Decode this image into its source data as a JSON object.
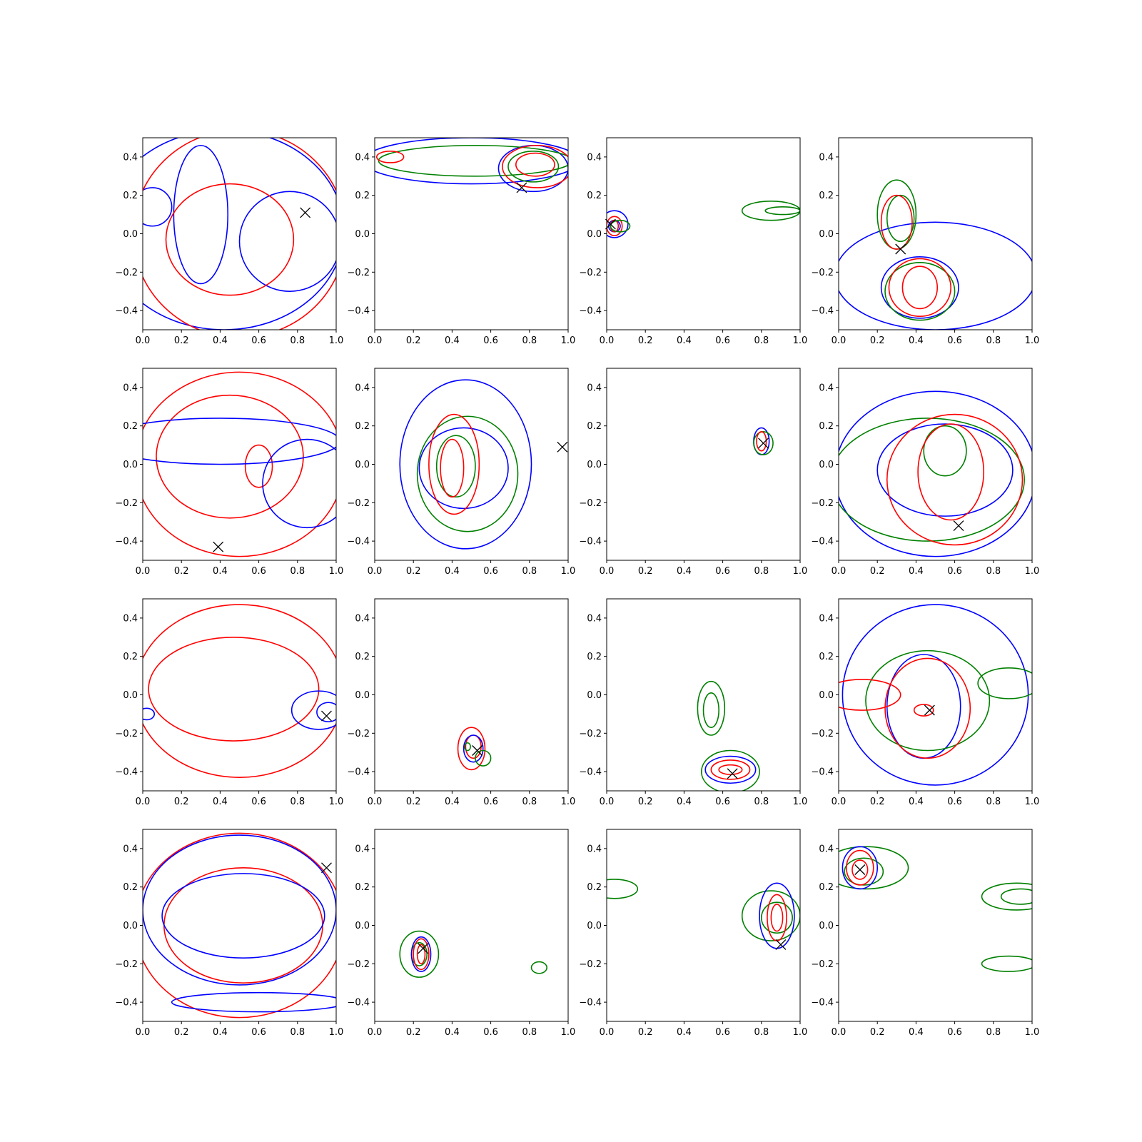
{
  "chart_data": {
    "type": "contour",
    "layout": {
      "rows": 4,
      "cols": 4
    },
    "xlim": [
      0,
      1
    ],
    "ylim": [
      -0.5,
      0.5
    ],
    "x_ticks": [
      "0.0",
      "0.2",
      "0.4",
      "0.6",
      "0.8",
      "1.0"
    ],
    "y_ticks": [
      "0.4",
      "0.2",
      "0.0",
      "−0.2",
      "−0.4"
    ],
    "colors": {
      "blue": "#0000ff",
      "red": "#ff0000",
      "green": "#008000",
      "marker": "#000000"
    },
    "panels": [
      {
        "marker": [
          0.84,
          0.11
        ],
        "contours": [
          {
            "color": "blue",
            "cx": 0.42,
            "cy": 0.02,
            "rx": 0.62,
            "ry": 0.52
          },
          {
            "color": "blue",
            "cx": 0.3,
            "cy": 0.1,
            "rx": 0.14,
            "ry": 0.36
          },
          {
            "color": "blue",
            "cx": 0.76,
            "cy": -0.04,
            "rx": 0.26,
            "ry": 0.26
          },
          {
            "color": "blue",
            "cx": 0.05,
            "cy": 0.14,
            "rx": 0.1,
            "ry": 0.1
          },
          {
            "color": "red",
            "cx": 0.5,
            "cy": 0.0,
            "rx": 0.55,
            "ry": 0.54
          },
          {
            "color": "red",
            "cx": 0.45,
            "cy": -0.03,
            "rx": 0.33,
            "ry": 0.29
          }
        ]
      },
      {
        "marker": [
          0.76,
          0.24
        ],
        "contours": [
          {
            "color": "blue",
            "cx": 0.5,
            "cy": 0.38,
            "rx": 0.56,
            "ry": 0.12
          },
          {
            "color": "blue",
            "cx": 0.82,
            "cy": 0.34,
            "rx": 0.18,
            "ry": 0.12
          },
          {
            "color": "green",
            "cx": 0.52,
            "cy": 0.38,
            "rx": 0.5,
            "ry": 0.08
          },
          {
            "color": "green",
            "cx": 0.82,
            "cy": 0.35,
            "rx": 0.13,
            "ry": 0.08
          },
          {
            "color": "red",
            "cx": 0.84,
            "cy": 0.35,
            "rx": 0.18,
            "ry": 0.11
          },
          {
            "color": "red",
            "cx": 0.83,
            "cy": 0.36,
            "rx": 0.1,
            "ry": 0.06
          },
          {
            "color": "red",
            "cx": 0.08,
            "cy": 0.4,
            "rx": 0.07,
            "ry": 0.03
          }
        ]
      },
      {
        "marker": [
          0.02,
          0.05
        ],
        "contours": [
          {
            "color": "blue",
            "cx": 0.04,
            "cy": 0.05,
            "rx": 0.07,
            "ry": 0.07
          },
          {
            "color": "blue",
            "cx": 0.04,
            "cy": 0.04,
            "rx": 0.03,
            "ry": 0.03
          },
          {
            "color": "red",
            "cx": 0.04,
            "cy": 0.04,
            "rx": 0.04,
            "ry": 0.05
          },
          {
            "color": "red",
            "cx": 0.04,
            "cy": 0.04,
            "rx": 0.02,
            "ry": 0.03
          },
          {
            "color": "green",
            "cx": 0.07,
            "cy": 0.04,
            "rx": 0.05,
            "ry": 0.03
          },
          {
            "color": "green",
            "cx": 0.85,
            "cy": 0.12,
            "rx": 0.15,
            "ry": 0.05
          },
          {
            "color": "green",
            "cx": 0.91,
            "cy": 0.12,
            "rx": 0.09,
            "ry": 0.02
          }
        ]
      },
      {
        "marker": [
          0.32,
          -0.08
        ],
        "contours": [
          {
            "color": "blue",
            "cx": 0.5,
            "cy": -0.22,
            "rx": 0.52,
            "ry": 0.28
          },
          {
            "color": "blue",
            "cx": 0.42,
            "cy": -0.28,
            "rx": 0.2,
            "ry": 0.16
          },
          {
            "color": "green",
            "cx": 0.3,
            "cy": 0.1,
            "rx": 0.1,
            "ry": 0.18
          },
          {
            "color": "green",
            "cx": 0.32,
            "cy": 0.08,
            "rx": 0.07,
            "ry": 0.12
          },
          {
            "color": "green",
            "cx": 0.42,
            "cy": -0.3,
            "rx": 0.18,
            "ry": 0.15
          },
          {
            "color": "red",
            "cx": 0.3,
            "cy": 0.06,
            "rx": 0.08,
            "ry": 0.14
          },
          {
            "color": "red",
            "cx": 0.42,
            "cy": -0.28,
            "rx": 0.16,
            "ry": 0.15
          },
          {
            "color": "red",
            "cx": 0.42,
            "cy": -0.28,
            "rx": 0.09,
            "ry": 0.11
          }
        ]
      },
      {
        "marker": [
          0.39,
          -0.43
        ],
        "contours": [
          {
            "color": "red",
            "cx": 0.5,
            "cy": 0.0,
            "rx": 0.54,
            "ry": 0.48
          },
          {
            "color": "red",
            "cx": 0.45,
            "cy": 0.04,
            "rx": 0.38,
            "ry": 0.32
          },
          {
            "color": "red",
            "cx": 0.6,
            "cy": -0.01,
            "rx": 0.07,
            "ry": 0.11
          },
          {
            "color": "blue",
            "cx": 0.85,
            "cy": -0.1,
            "rx": 0.23,
            "ry": 0.23
          },
          {
            "color": "blue",
            "cx": 0.4,
            "cy": 0.12,
            "rx": 0.62,
            "ry": 0.12
          }
        ]
      },
      {
        "marker": [
          0.97,
          0.09
        ],
        "contours": [
          {
            "color": "blue",
            "cx": 0.47,
            "cy": 0.0,
            "rx": 0.34,
            "ry": 0.44
          },
          {
            "color": "blue",
            "cx": 0.46,
            "cy": -0.02,
            "rx": 0.23,
            "ry": 0.21
          },
          {
            "color": "green",
            "cx": 0.48,
            "cy": -0.05,
            "rx": 0.26,
            "ry": 0.3
          },
          {
            "color": "green",
            "cx": 0.42,
            "cy": -0.01,
            "rx": 0.1,
            "ry": 0.16
          },
          {
            "color": "red",
            "cx": 0.41,
            "cy": 0.0,
            "rx": 0.13,
            "ry": 0.26
          },
          {
            "color": "red",
            "cx": 0.4,
            "cy": -0.02,
            "rx": 0.06,
            "ry": 0.15
          }
        ]
      },
      {
        "marker": [
          0.81,
          0.11
        ],
        "contours": [
          {
            "color": "blue",
            "cx": 0.8,
            "cy": 0.12,
            "rx": 0.04,
            "ry": 0.07
          },
          {
            "color": "green",
            "cx": 0.81,
            "cy": 0.11,
            "rx": 0.05,
            "ry": 0.06
          },
          {
            "color": "red",
            "cx": 0.8,
            "cy": 0.12,
            "rx": 0.025,
            "ry": 0.05
          }
        ]
      },
      {
        "marker": [
          0.62,
          -0.32
        ],
        "contours": [
          {
            "color": "blue",
            "cx": 0.5,
            "cy": -0.05,
            "rx": 0.52,
            "ry": 0.43
          },
          {
            "color": "blue",
            "cx": 0.55,
            "cy": -0.03,
            "rx": 0.35,
            "ry": 0.24
          },
          {
            "color": "green",
            "cx": 0.55,
            "cy": 0.07,
            "rx": 0.11,
            "ry": 0.13
          },
          {
            "color": "green",
            "cx": 0.46,
            "cy": -0.08,
            "rx": 0.5,
            "ry": 0.32
          },
          {
            "color": "red",
            "cx": 0.6,
            "cy": -0.08,
            "rx": 0.35,
            "ry": 0.34
          },
          {
            "color": "red",
            "cx": 0.58,
            "cy": -0.04,
            "rx": 0.17,
            "ry": 0.25
          }
        ]
      },
      {
        "marker": [
          0.95,
          -0.11
        ],
        "contours": [
          {
            "color": "red",
            "cx": 0.5,
            "cy": 0.02,
            "rx": 0.54,
            "ry": 0.45
          },
          {
            "color": "red",
            "cx": 0.47,
            "cy": 0.03,
            "rx": 0.44,
            "ry": 0.27
          },
          {
            "color": "blue",
            "cx": 0.91,
            "cy": -0.08,
            "rx": 0.14,
            "ry": 0.1
          },
          {
            "color": "blue",
            "cx": 0.96,
            "cy": -0.09,
            "rx": 0.06,
            "ry": 0.05
          },
          {
            "color": "blue",
            "cx": 0.02,
            "cy": -0.1,
            "rx": 0.04,
            "ry": 0.03
          }
        ]
      },
      {
        "marker": [
          0.53,
          -0.29
        ],
        "contours": [
          {
            "color": "red",
            "cx": 0.5,
            "cy": -0.28,
            "rx": 0.07,
            "ry": 0.11
          },
          {
            "color": "red",
            "cx": 0.51,
            "cy": -0.27,
            "rx": 0.04,
            "ry": 0.06
          },
          {
            "color": "blue",
            "cx": 0.51,
            "cy": -0.28,
            "rx": 0.05,
            "ry": 0.07
          },
          {
            "color": "green",
            "cx": 0.56,
            "cy": -0.33,
            "rx": 0.04,
            "ry": 0.04
          },
          {
            "color": "green",
            "cx": 0.48,
            "cy": -0.27,
            "rx": 0.015,
            "ry": 0.02
          }
        ]
      },
      {
        "marker": [
          0.65,
          -0.41
        ],
        "contours": [
          {
            "color": "green",
            "cx": 0.54,
            "cy": -0.07,
            "rx": 0.07,
            "ry": 0.14
          },
          {
            "color": "green",
            "cx": 0.54,
            "cy": -0.08,
            "rx": 0.04,
            "ry": 0.09
          },
          {
            "color": "green",
            "cx": 0.64,
            "cy": -0.4,
            "rx": 0.15,
            "ry": 0.11
          },
          {
            "color": "blue",
            "cx": 0.64,
            "cy": -0.39,
            "rx": 0.13,
            "ry": 0.07
          },
          {
            "color": "red",
            "cx": 0.64,
            "cy": -0.39,
            "rx": 0.1,
            "ry": 0.05
          },
          {
            "color": "red",
            "cx": 0.64,
            "cy": -0.39,
            "rx": 0.06,
            "ry": 0.025
          }
        ]
      },
      {
        "marker": [
          0.47,
          -0.08
        ],
        "contours": [
          {
            "color": "blue",
            "cx": 0.5,
            "cy": 0.0,
            "rx": 0.48,
            "ry": 0.47
          },
          {
            "color": "blue",
            "cx": 0.44,
            "cy": -0.06,
            "rx": 0.19,
            "ry": 0.27
          },
          {
            "color": "green",
            "cx": 0.46,
            "cy": -0.03,
            "rx": 0.32,
            "ry": 0.26
          },
          {
            "color": "green",
            "cx": 0.88,
            "cy": 0.06,
            "rx": 0.16,
            "ry": 0.08
          },
          {
            "color": "red",
            "cx": 0.46,
            "cy": -0.07,
            "rx": 0.22,
            "ry": 0.26
          },
          {
            "color": "red",
            "cx": 0.44,
            "cy": -0.08,
            "rx": 0.05,
            "ry": 0.03
          },
          {
            "color": "red",
            "cx": 0.12,
            "cy": 0.0,
            "rx": 0.2,
            "ry": 0.08
          }
        ]
      },
      {
        "marker": [
          0.95,
          0.3
        ],
        "contours": [
          {
            "color": "red",
            "cx": 0.5,
            "cy": 0.0,
            "rx": 0.54,
            "ry": 0.48
          },
          {
            "color": "red",
            "cx": 0.52,
            "cy": 0.0,
            "rx": 0.41,
            "ry": 0.3
          },
          {
            "color": "blue",
            "cx": 0.5,
            "cy": 0.08,
            "rx": 0.5,
            "ry": 0.39
          },
          {
            "color": "blue",
            "cx": 0.52,
            "cy": 0.05,
            "rx": 0.42,
            "ry": 0.22
          },
          {
            "color": "blue",
            "cx": 0.6,
            "cy": -0.4,
            "rx": 0.45,
            "ry": 0.05
          }
        ]
      },
      {
        "marker": [
          0.25,
          -0.12
        ],
        "contours": [
          {
            "color": "green",
            "cx": 0.23,
            "cy": -0.15,
            "rx": 0.1,
            "ry": 0.12
          },
          {
            "color": "green",
            "cx": 0.23,
            "cy": -0.15,
            "rx": 0.04,
            "ry": 0.06
          },
          {
            "color": "green",
            "cx": 0.85,
            "cy": -0.22,
            "rx": 0.04,
            "ry": 0.03
          },
          {
            "color": "blue",
            "cx": 0.24,
            "cy": -0.15,
            "rx": 0.05,
            "ry": 0.09
          },
          {
            "color": "red",
            "cx": 0.24,
            "cy": -0.15,
            "rx": 0.04,
            "ry": 0.08
          },
          {
            "color": "red",
            "cx": 0.24,
            "cy": -0.15,
            "rx": 0.02,
            "ry": 0.05
          }
        ]
      },
      {
        "marker": [
          0.9,
          -0.1
        ],
        "contours": [
          {
            "color": "green",
            "cx": 0.85,
            "cy": 0.05,
            "rx": 0.15,
            "ry": 0.13
          },
          {
            "color": "green",
            "cx": 0.88,
            "cy": 0.04,
            "rx": 0.08,
            "ry": 0.08
          },
          {
            "color": "green",
            "cx": 0.04,
            "cy": 0.19,
            "rx": 0.12,
            "ry": 0.05
          },
          {
            "color": "blue",
            "cx": 0.88,
            "cy": 0.05,
            "rx": 0.09,
            "ry": 0.17
          },
          {
            "color": "red",
            "cx": 0.88,
            "cy": 0.04,
            "rx": 0.05,
            "ry": 0.12
          },
          {
            "color": "red",
            "cx": 0.88,
            "cy": 0.04,
            "rx": 0.03,
            "ry": 0.07
          }
        ]
      },
      {
        "marker": [
          0.11,
          0.29
        ],
        "contours": [
          {
            "color": "green",
            "cx": 0.14,
            "cy": 0.3,
            "rx": 0.22,
            "ry": 0.11
          },
          {
            "color": "green",
            "cx": 0.13,
            "cy": 0.28,
            "rx": 0.1,
            "ry": 0.07
          },
          {
            "color": "green",
            "cx": 0.92,
            "cy": 0.15,
            "rx": 0.18,
            "ry": 0.07
          },
          {
            "color": "green",
            "cx": 0.94,
            "cy": 0.15,
            "rx": 0.1,
            "ry": 0.04
          },
          {
            "color": "green",
            "cx": 0.88,
            "cy": -0.2,
            "rx": 0.14,
            "ry": 0.04
          },
          {
            "color": "blue",
            "cx": 0.11,
            "cy": 0.3,
            "rx": 0.09,
            "ry": 0.11
          },
          {
            "color": "red",
            "cx": 0.11,
            "cy": 0.3,
            "rx": 0.07,
            "ry": 0.09
          },
          {
            "color": "red",
            "cx": 0.11,
            "cy": 0.29,
            "rx": 0.04,
            "ry": 0.05
          }
        ]
      }
    ]
  }
}
